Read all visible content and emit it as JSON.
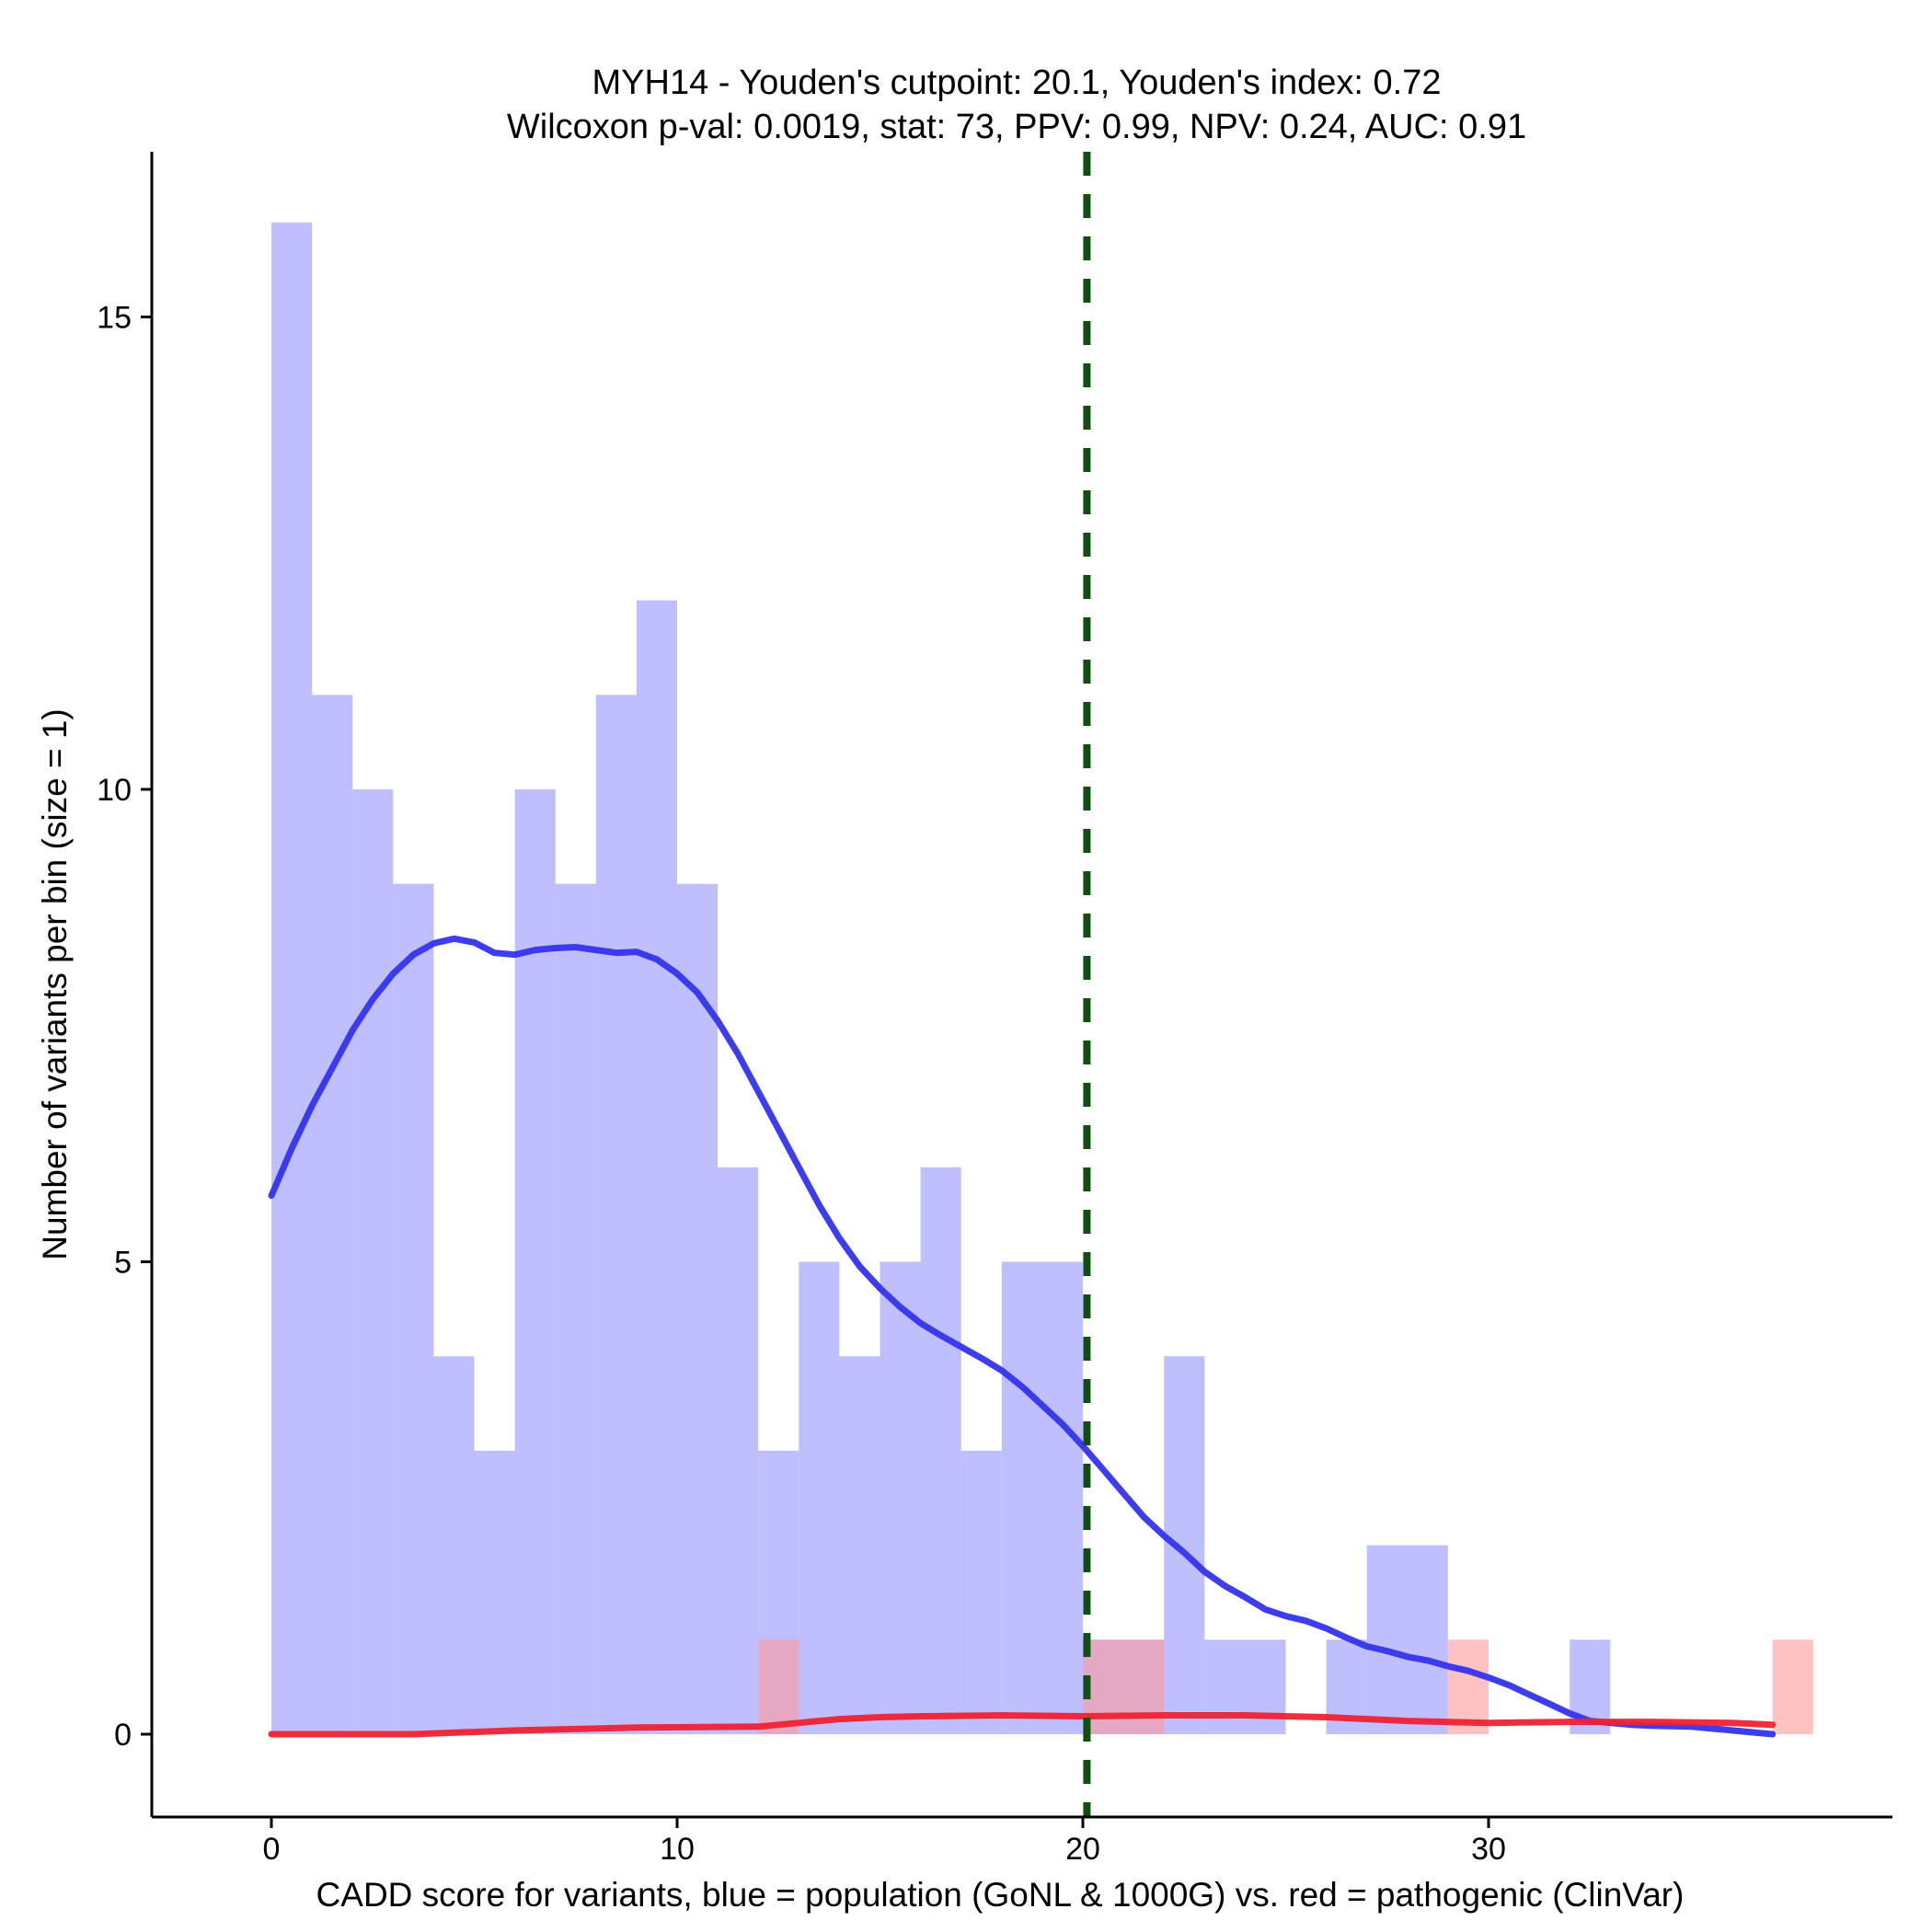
{
  "chart_data": {
    "type": "histogram",
    "title": "MYH14 - Youden's cutpoint: 20.1, Youden's index: 0.72",
    "subtitle": "Wilcoxon p-val: 0.0019, stat: 73, PPV: 0.99, NPV: 0.24, AUC: 0.91",
    "xlabel": "CADD score for variants, blue = population (GoNL & 1000G) vs. red = pathogenic (ClinVar)",
    "ylabel": "Number of variants per bin (size = 1)",
    "xlim": [
      -3,
      40
    ],
    "ylim": [
      -1.6,
      16.1
    ],
    "xticks": [
      0,
      10,
      20,
      30
    ],
    "xtick_labels": [
      "0",
      "10",
      "20",
      "30"
    ],
    "yticks": [
      0,
      5,
      10,
      15
    ],
    "ytick_labels": [
      "0",
      "5",
      "10",
      "15"
    ],
    "bin_size": 1,
    "cutpoint": 20.1,
    "series": [
      {
        "name": "population (GoNL & 1000G)",
        "color": "#8080ff",
        "bins": [
          {
            "x0": 0,
            "count": 16
          },
          {
            "x0": 1,
            "count": 11
          },
          {
            "x0": 2,
            "count": 10
          },
          {
            "x0": 3,
            "count": 9
          },
          {
            "x0": 4,
            "count": 4
          },
          {
            "x0": 5,
            "count": 3
          },
          {
            "x0": 6,
            "count": 10
          },
          {
            "x0": 7,
            "count": 9
          },
          {
            "x0": 8,
            "count": 11
          },
          {
            "x0": 9,
            "count": 12
          },
          {
            "x0": 10,
            "count": 9
          },
          {
            "x0": 11,
            "count": 6
          },
          {
            "x0": 12,
            "count": 3
          },
          {
            "x0": 13,
            "count": 5
          },
          {
            "x0": 14,
            "count": 4
          },
          {
            "x0": 15,
            "count": 5
          },
          {
            "x0": 16,
            "count": 6
          },
          {
            "x0": 17,
            "count": 3
          },
          {
            "x0": 18,
            "count": 5
          },
          {
            "x0": 19,
            "count": 5
          },
          {
            "x0": 20,
            "count": 1
          },
          {
            "x0": 21,
            "count": 1
          },
          {
            "x0": 22,
            "count": 4
          },
          {
            "x0": 23,
            "count": 1
          },
          {
            "x0": 24,
            "count": 1
          },
          {
            "x0": 26,
            "count": 1
          },
          {
            "x0": 27,
            "count": 2
          },
          {
            "x0": 28,
            "count": 2
          },
          {
            "x0": 32,
            "count": 1
          }
        ],
        "density_color": "#3333ee",
        "density": [
          [
            0,
            5.7
          ],
          [
            0.5,
            6.2
          ],
          [
            1,
            6.65
          ],
          [
            1.5,
            7.05
          ],
          [
            2,
            7.45
          ],
          [
            2.5,
            7.78
          ],
          [
            3,
            8.05
          ],
          [
            3.5,
            8.25
          ],
          [
            4,
            8.37
          ],
          [
            4.5,
            8.42
          ],
          [
            5,
            8.38
          ],
          [
            5.5,
            8.27
          ],
          [
            6,
            8.25
          ],
          [
            6.5,
            8.3
          ],
          [
            7,
            8.32
          ],
          [
            7.5,
            8.33
          ],
          [
            8,
            8.3
          ],
          [
            8.5,
            8.27
          ],
          [
            9,
            8.28
          ],
          [
            9.5,
            8.2
          ],
          [
            10,
            8.05
          ],
          [
            10.5,
            7.85
          ],
          [
            11,
            7.55
          ],
          [
            11.5,
            7.2
          ],
          [
            12,
            6.8
          ],
          [
            12.5,
            6.4
          ],
          [
            13,
            6.0
          ],
          [
            13.5,
            5.6
          ],
          [
            14,
            5.25
          ],
          [
            14.5,
            4.95
          ],
          [
            15,
            4.72
          ],
          [
            15.5,
            4.52
          ],
          [
            16,
            4.35
          ],
          [
            16.5,
            4.22
          ],
          [
            17,
            4.1
          ],
          [
            17.5,
            3.98
          ],
          [
            18,
            3.85
          ],
          [
            18.5,
            3.68
          ],
          [
            19,
            3.48
          ],
          [
            19.5,
            3.28
          ],
          [
            20,
            3.05
          ],
          [
            20.5,
            2.8
          ],
          [
            21,
            2.55
          ],
          [
            21.5,
            2.3
          ],
          [
            22,
            2.1
          ],
          [
            22.5,
            1.92
          ],
          [
            23,
            1.72
          ],
          [
            23.5,
            1.57
          ],
          [
            24,
            1.45
          ],
          [
            24.5,
            1.32
          ],
          [
            25,
            1.25
          ],
          [
            25.5,
            1.2
          ],
          [
            26,
            1.12
          ],
          [
            26.5,
            1.02
          ],
          [
            27,
            0.93
          ],
          [
            27.5,
            0.88
          ],
          [
            28,
            0.82
          ],
          [
            28.5,
            0.78
          ],
          [
            29,
            0.72
          ],
          [
            29.5,
            0.67
          ],
          [
            30,
            0.6
          ],
          [
            30.5,
            0.52
          ],
          [
            31,
            0.42
          ],
          [
            31.5,
            0.32
          ],
          [
            32,
            0.22
          ],
          [
            32.5,
            0.14
          ],
          [
            33,
            0.12
          ],
          [
            33.5,
            0.1
          ],
          [
            34,
            0.09
          ],
          [
            35,
            0.08
          ],
          [
            36,
            0.04
          ],
          [
            37,
            0.0
          ]
        ]
      },
      {
        "name": "pathogenic (ClinVar)",
        "color": "#ff9999",
        "bins": [
          {
            "x0": 12,
            "count": 1
          },
          {
            "x0": 20,
            "count": 1
          },
          {
            "x0": 21,
            "count": 1
          },
          {
            "x0": 29,
            "count": 1
          },
          {
            "x0": 37,
            "count": 1
          }
        ],
        "density_color": "#ee2233",
        "density": [
          [
            0,
            0.0
          ],
          [
            3.5,
            0.0
          ],
          [
            6,
            0.04
          ],
          [
            9,
            0.07
          ],
          [
            12,
            0.08
          ],
          [
            13,
            0.12
          ],
          [
            14,
            0.16
          ],
          [
            15,
            0.18
          ],
          [
            16,
            0.19
          ],
          [
            18,
            0.2
          ],
          [
            20,
            0.19
          ],
          [
            22,
            0.2
          ],
          [
            24,
            0.2
          ],
          [
            26,
            0.18
          ],
          [
            28,
            0.14
          ],
          [
            30,
            0.12
          ],
          [
            32,
            0.13
          ],
          [
            34,
            0.13
          ],
          [
            36,
            0.12
          ],
          [
            37,
            0.1
          ]
        ]
      }
    ]
  }
}
